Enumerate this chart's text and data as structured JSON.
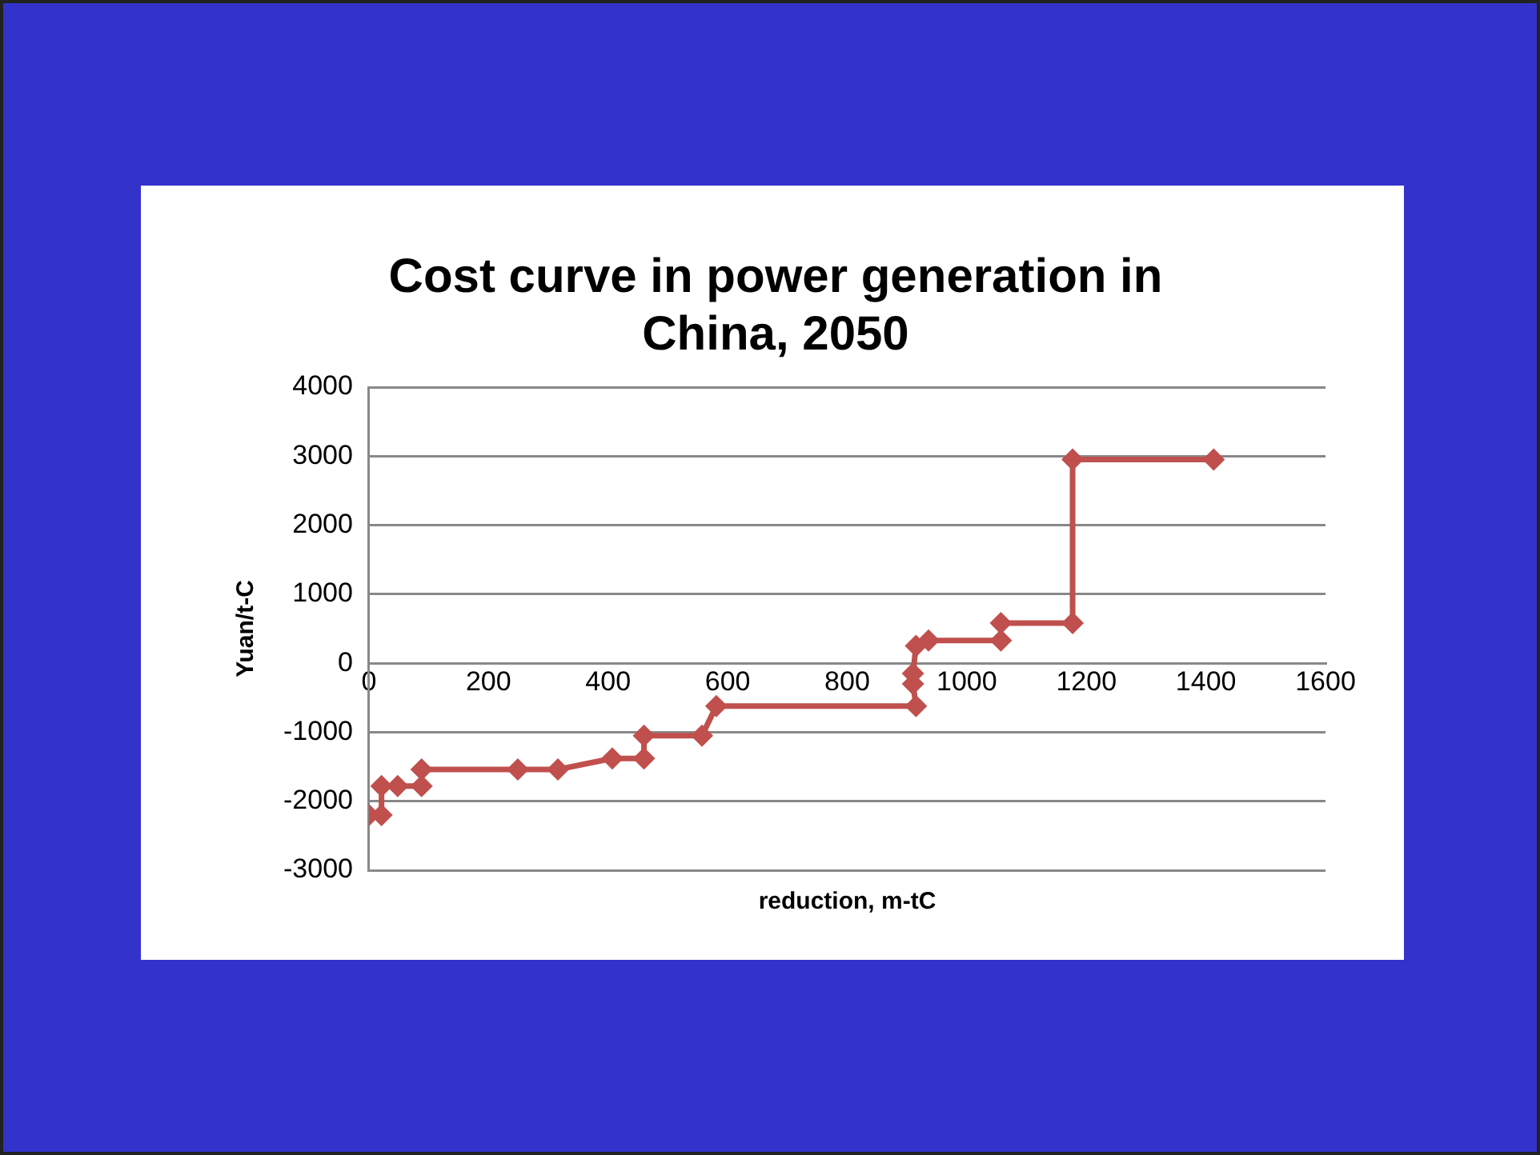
{
  "chart_data": {
    "type": "line",
    "title": "Cost curve in power generation in China, 2050",
    "xlabel": "reduction, m-tC",
    "ylabel": "Yuan/t-C",
    "series": [
      {
        "color": "#c0504d",
        "x": [
          0,
          21,
          21,
          48,
          88,
          88,
          249,
          316,
          407,
          460,
          460,
          557,
          581,
          915,
          910,
          910,
          915,
          936,
          1057,
          1057,
          1177,
          1177,
          1413
        ],
        "values": [
          -2200,
          -2200,
          -1780,
          -1780,
          -1780,
          -1540,
          -1540,
          -1540,
          -1380,
          -1380,
          -1050,
          -1050,
          -620,
          -620,
          -300,
          -150,
          250,
          330,
          330,
          580,
          580,
          2950,
          2950
        ]
      }
    ],
    "xlim": [
      0,
      1600
    ],
    "xticks": [
      0,
      200,
      400,
      600,
      800,
      1000,
      1200,
      1400,
      1600
    ],
    "ylim": [
      -3000,
      4000
    ],
    "yticks": [
      -3000,
      -2000,
      -1000,
      0,
      1000,
      2000,
      3000,
      4000
    ],
    "grid": "y",
    "legend": false,
    "marker": "diamond",
    "line_style": "solid"
  }
}
